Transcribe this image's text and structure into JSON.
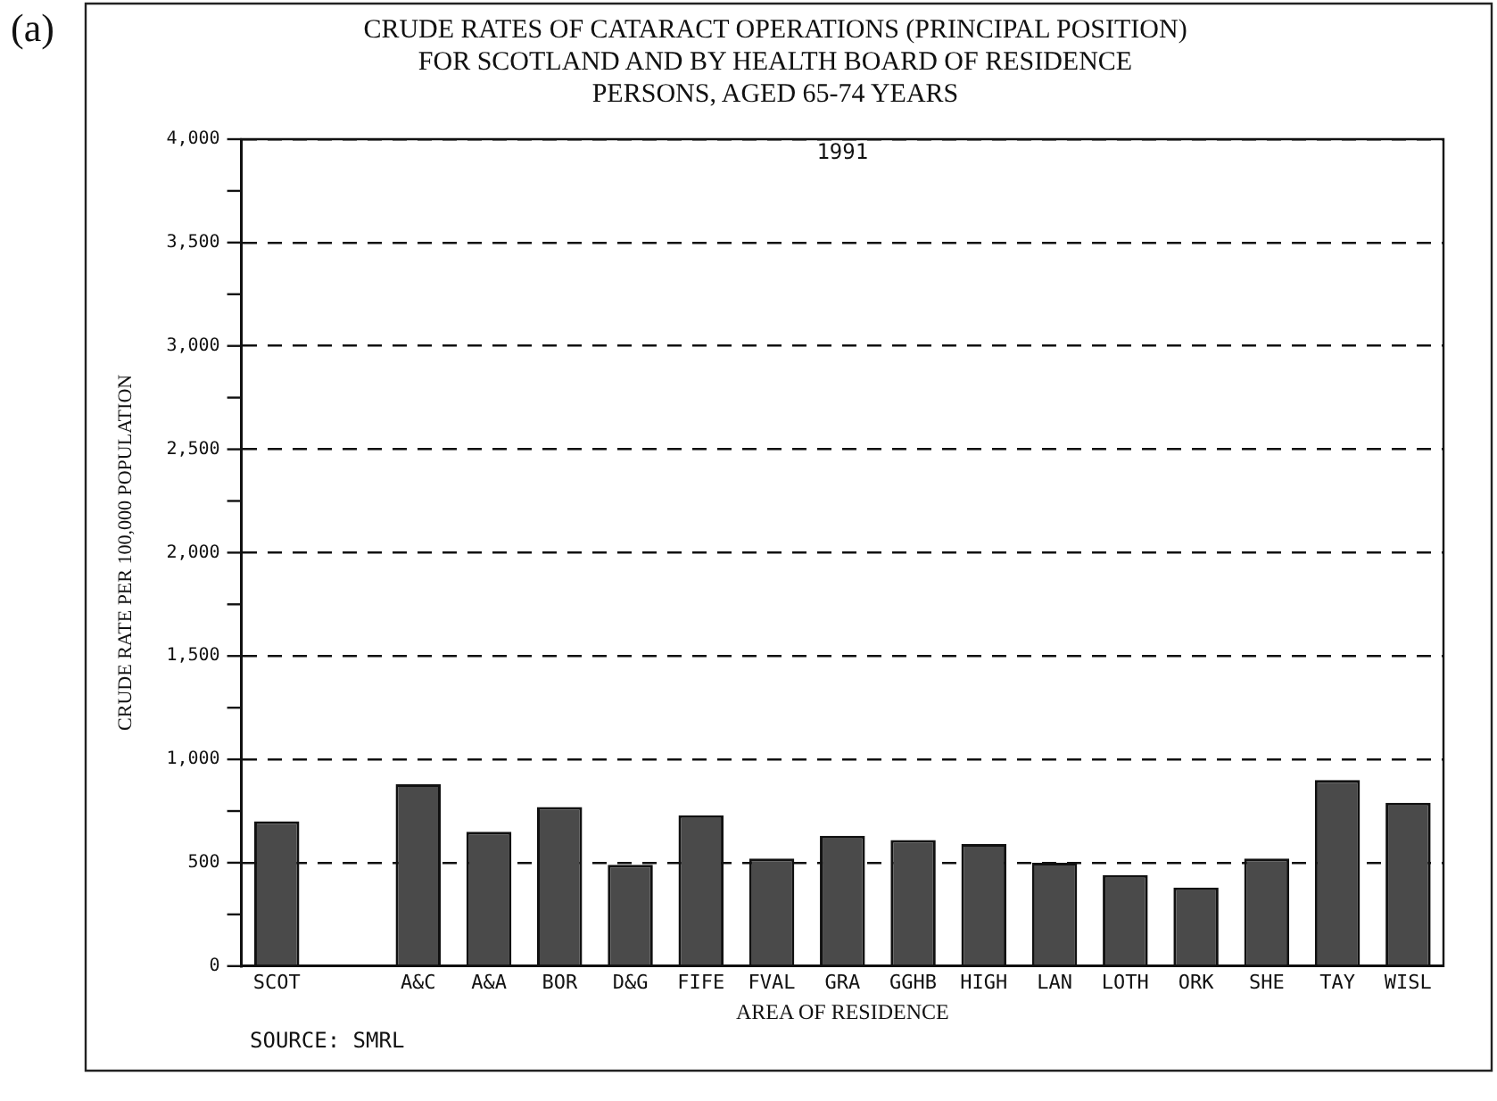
{
  "chart_data": {
    "type": "bar",
    "title": [
      "CRUDE RATES OF CATARACT OPERATIONS (PRINCIPAL POSITION)",
      "FOR SCOTLAND AND BY HEALTH BOARD OF RESIDENCE"
    ],
    "subtitle": "PERSONS, AGED 65-74 YEARS",
    "xlabel": "AREA OF RESIDENCE",
    "ylabel": "CRUDE RATE PER 100,000 POPULATION",
    "annotations": [
      "(a)",
      "1991",
      "SOURCE: SMRL"
    ],
    "categories": [
      "SCOT",
      null,
      "A&C",
      "A&A",
      "BOR",
      "D&G",
      "FIFE",
      "FVAL",
      "GRA",
      "GGHB",
      "HIGH",
      "LAN",
      "LOTH",
      "ORK",
      "SHE",
      "TAY",
      "WISL"
    ],
    "values": [
      700,
      null,
      880,
      650,
      770,
      490,
      730,
      520,
      630,
      610,
      590,
      500,
      440,
      380,
      520,
      900,
      790
    ],
    "color": "#4a4a4a",
    "ylim": [
      0,
      4000
    ],
    "yticks": [
      {
        "value": 0,
        "label": "0"
      },
      {
        "value": 250,
        "label": null
      },
      {
        "value": 500,
        "label": "500"
      },
      {
        "value": 750,
        "label": null
      },
      {
        "value": 1000,
        "label": "1,000"
      },
      {
        "value": 1250,
        "label": null
      },
      {
        "value": 1500,
        "label": "1,500"
      },
      {
        "value": 1750,
        "label": null
      },
      {
        "value": 2000,
        "label": "2,000"
      },
      {
        "value": 2250,
        "label": null
      },
      {
        "value": 2500,
        "label": "2,500"
      },
      {
        "value": 2750,
        "label": null
      },
      {
        "value": 3000,
        "label": "3,000"
      },
      {
        "value": 3250,
        "label": null
      },
      {
        "value": 3500,
        "label": "3,500"
      },
      {
        "value": 3750,
        "label": null
      },
      {
        "value": 4000,
        "label": "4,000"
      }
    ],
    "grid": "y",
    "legend": false
  }
}
